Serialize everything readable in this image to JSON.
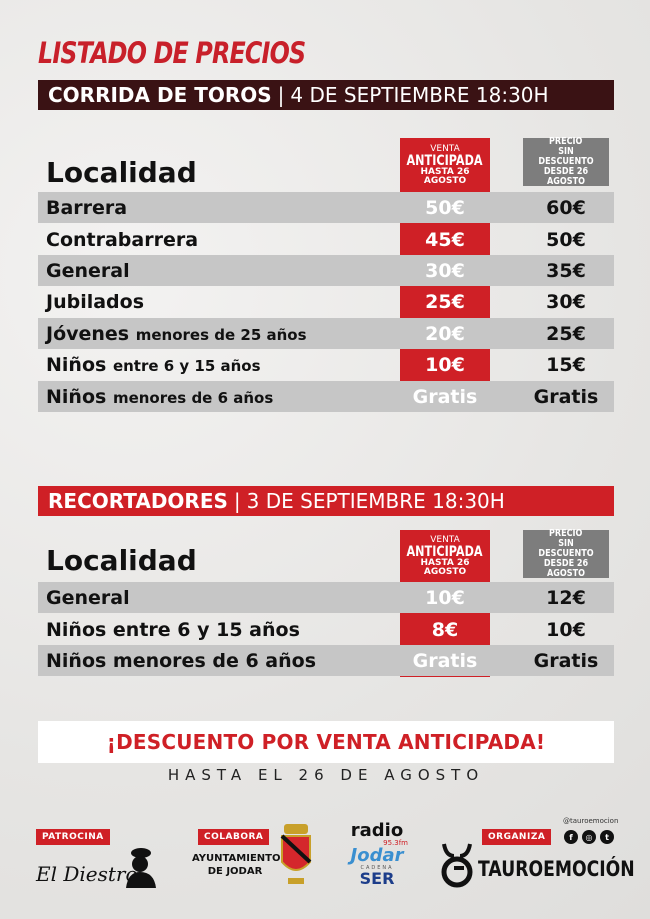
{
  "title": "LISTADO DE PRECIOS",
  "corrida": {
    "name": "CORRIDA DE TOROS",
    "date": "4 DE SEPTIEMBRE 18:30H",
    "col_head": "Localidad",
    "adv_head": [
      "VENTA",
      "ANTICIPADA",
      "HASTA 26 AGOSTO"
    ],
    "full_head": [
      "PRECIO",
      "SIN DESCUENTO",
      "DESDE 26 AGOSTO"
    ],
    "rows": [
      {
        "name": "Barrera",
        "sub": "",
        "advance": "50€",
        "full": "60€"
      },
      {
        "name": "Contrabarrera",
        "sub": "",
        "advance": "45€",
        "full": "50€"
      },
      {
        "name": "General",
        "sub": "",
        "advance": "30€",
        "full": "35€"
      },
      {
        "name": "Jubilados",
        "sub": "",
        "advance": "25€",
        "full": "30€"
      },
      {
        "name": "Jóvenes",
        "sub": "menores de 25 años",
        "advance": "20€",
        "full": "25€"
      },
      {
        "name": "Niños",
        "sub": "entre 6 y 15 años",
        "advance": "10€",
        "full": "15€"
      },
      {
        "name": "Niños",
        "sub": "menores de 6 años",
        "advance": "Gratis",
        "full": "Gratis"
      }
    ]
  },
  "recortadores": {
    "name": "RECORTADORES",
    "date": "3 DE SEPTIEMBRE 18:30H",
    "col_head": "Localidad",
    "adv_head": [
      "VENTA",
      "ANTICIPADA",
      "HASTA 26 AGOSTO"
    ],
    "full_head": [
      "PRECIO",
      "SIN DESCUENTO",
      "DESDE 26 AGOSTO"
    ],
    "rows": [
      {
        "name": "General",
        "advance": "10€",
        "full": "12€"
      },
      {
        "name": "Niños entre 6 y 15 años",
        "advance": "8€",
        "full": "10€"
      },
      {
        "name": "Niños menores de 6 años",
        "advance": "Gratis",
        "full": "Gratis"
      }
    ]
  },
  "promo": {
    "headline": "¡DESCUENTO POR VENTA ANTICIPADA!",
    "sub": "HASTA EL 26 DE AGOSTO"
  },
  "footer": {
    "patrocina": "PATROCINA",
    "patrocina_logo": "El Diestro",
    "colabora": "COLABORA",
    "colabora_logo": [
      "AYUNTAMIENTO",
      "DE JODAR"
    ],
    "radio": {
      "top": "radio",
      "freq": "95.3fm",
      "name": "Jodar",
      "cadena": "CADENA",
      "ser": "SER"
    },
    "organiza": "ORGANIZA",
    "handle": "@tauroemocion",
    "organiza_logo": "TAUROEMOCIÓN",
    "social_icons": [
      "facebook-icon",
      "instagram-icon",
      "twitter-icon"
    ]
  },
  "colors": {
    "red": "#cf2026",
    "dark": "#3a1214",
    "grey": "#c6c6c6"
  }
}
